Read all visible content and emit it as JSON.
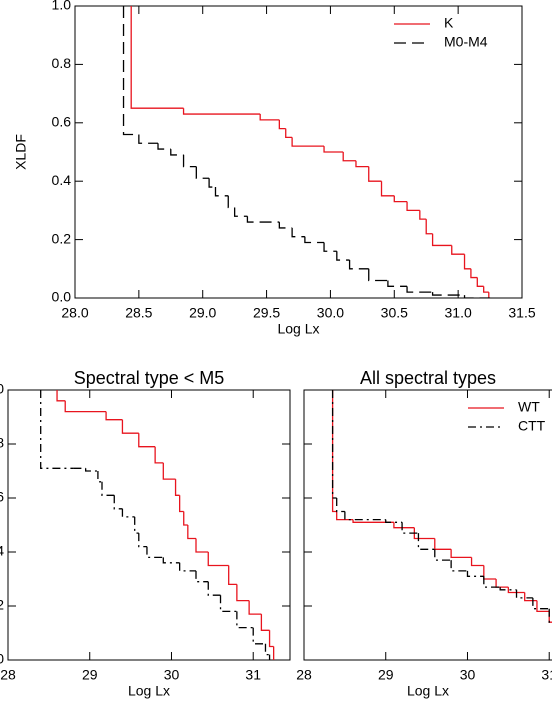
{
  "chart_data": [
    {
      "type": "line",
      "drawstyle": "steps-post",
      "ylabel": "XLDF",
      "xlabel": "Log Lx",
      "xlim": [
        28.0,
        31.5
      ],
      "ylim": [
        0.0,
        1.0
      ],
      "xticks": [
        {
          "value": 28.0,
          "label": "28.0"
        },
        {
          "value": 28.5,
          "label": "28.5"
        },
        {
          "value": 29.0,
          "label": "29.0"
        },
        {
          "value": 29.5,
          "label": "29.5"
        },
        {
          "value": 30.0,
          "label": "30.0"
        },
        {
          "value": 30.5,
          "label": "30.5"
        },
        {
          "value": 31.0,
          "label": "31.0"
        },
        {
          "value": 31.5,
          "label": "31.5"
        }
      ],
      "yticks": [
        {
          "value": 0.0,
          "label": "0.0"
        },
        {
          "value": 0.2,
          "label": "0.2"
        },
        {
          "value": 0.4,
          "label": "0.4"
        },
        {
          "value": 0.6,
          "label": "0.6"
        },
        {
          "value": 0.8,
          "label": "0.8"
        },
        {
          "value": 1.0,
          "label": "1.0"
        }
      ],
      "ytick_labels": true,
      "legend": "upper right",
      "series": [
        {
          "name": "K",
          "color": "#e8141e",
          "dash": "solid",
          "x": [
            28.44,
            28.44,
            28.85,
            29.45,
            29.6,
            29.65,
            29.7,
            29.95,
            30.1,
            30.2,
            30.3,
            30.4,
            30.5,
            30.6,
            30.7,
            30.75,
            30.8,
            30.95,
            31.05,
            31.1,
            31.15,
            31.2,
            31.24
          ],
          "values": [
            1.0,
            0.65,
            0.63,
            0.61,
            0.58,
            0.55,
            0.52,
            0.5,
            0.47,
            0.45,
            0.4,
            0.35,
            0.33,
            0.3,
            0.27,
            0.22,
            0.18,
            0.15,
            0.1,
            0.07,
            0.04,
            0.02,
            0.0
          ]
        },
        {
          "name": "M0-M4",
          "color": "#000000",
          "dash": "dashed",
          "x": [
            28.38,
            28.38,
            28.5,
            28.65,
            28.75,
            28.85,
            28.95,
            29.05,
            29.1,
            29.2,
            29.25,
            29.35,
            29.6,
            29.7,
            29.8,
            29.95,
            30.05,
            30.15,
            30.3,
            30.45,
            30.6,
            30.8,
            31.05,
            31.25
          ],
          "values": [
            1.0,
            0.56,
            0.53,
            0.51,
            0.49,
            0.45,
            0.41,
            0.38,
            0.35,
            0.31,
            0.28,
            0.26,
            0.24,
            0.21,
            0.19,
            0.16,
            0.13,
            0.1,
            0.06,
            0.04,
            0.02,
            0.01,
            0.0,
            0.0
          ]
        }
      ]
    },
    {
      "type": "line",
      "drawstyle": "steps-post",
      "title": "Spectral type < M5",
      "xlabel": "Log Lx",
      "xlim": [
        28,
        31.45
      ],
      "ylim": [
        0.0,
        1.0
      ],
      "xticks": [
        28,
        29,
        30,
        31
      ],
      "yticks": [
        {
          "value": 0.0,
          "label": "0.0"
        },
        {
          "value": 0.2,
          "label": "0.2"
        },
        {
          "value": 0.4,
          "label": "0.4"
        },
        {
          "value": 0.6,
          "label": "0.6"
        },
        {
          "value": 0.8,
          "label": "0.8"
        },
        {
          "value": 1.0,
          "label": "1.0"
        }
      ],
      "ytick_labels": true,
      "series": [
        {
          "color": "#e8141e",
          "dash": "solid",
          "x": [
            28.6,
            28.6,
            28.7,
            29.2,
            29.4,
            29.6,
            29.8,
            29.9,
            30.05,
            30.1,
            30.15,
            30.2,
            30.3,
            30.45,
            30.7,
            30.8,
            30.95,
            31.1,
            31.2,
            31.25
          ],
          "values": [
            1.0,
            0.96,
            0.92,
            0.89,
            0.84,
            0.79,
            0.73,
            0.67,
            0.61,
            0.55,
            0.5,
            0.45,
            0.4,
            0.35,
            0.28,
            0.22,
            0.17,
            0.11,
            0.05,
            0.0
          ]
        },
        {
          "color": "#000000",
          "dash": "dashdot",
          "x": [
            28.4,
            28.4,
            28.8,
            28.95,
            29.1,
            29.15,
            29.3,
            29.4,
            29.55,
            29.6,
            29.7,
            29.9,
            30.1,
            30.3,
            30.45,
            30.6,
            30.8,
            31.0,
            31.15,
            31.2
          ],
          "values": [
            1.0,
            0.71,
            0.71,
            0.7,
            0.66,
            0.61,
            0.56,
            0.53,
            0.47,
            0.42,
            0.38,
            0.36,
            0.33,
            0.29,
            0.24,
            0.18,
            0.12,
            0.06,
            0.02,
            0.0
          ]
        }
      ]
    },
    {
      "type": "line",
      "drawstyle": "steps-post",
      "title": "All spectral types",
      "xlabel": "Log Lx",
      "xlim": [
        28,
        31.45
      ],
      "ylim": [
        0.0,
        1.0
      ],
      "xticks": [
        28,
        29,
        30,
        31
      ],
      "yticks": [
        0.0,
        0.2,
        0.4,
        0.6,
        0.8,
        1.0
      ],
      "ytick_labels": false,
      "legend": "upper right",
      "series": [
        {
          "name": "WT",
          "color": "#e8141e",
          "dash": "solid",
          "x": [
            28.35,
            28.35,
            28.4,
            28.6,
            29.1,
            29.35,
            29.6,
            29.8,
            30.05,
            30.2,
            30.35,
            30.5,
            30.7,
            30.85,
            31.0,
            31.15,
            31.25
          ],
          "values": [
            1.0,
            0.55,
            0.52,
            0.51,
            0.49,
            0.45,
            0.41,
            0.38,
            0.35,
            0.3,
            0.27,
            0.25,
            0.22,
            0.18,
            0.14,
            0.1,
            0.08
          ]
        },
        {
          "name": "CTT",
          "color": "#000000",
          "dash": "dashdot",
          "x": [
            28.35,
            28.35,
            28.4,
            28.5,
            29.0,
            29.2,
            29.4,
            29.6,
            29.8,
            30.0,
            30.2,
            30.4,
            30.6,
            30.8,
            31.0,
            31.2,
            31.3
          ],
          "values": [
            1.0,
            0.6,
            0.55,
            0.52,
            0.51,
            0.47,
            0.41,
            0.37,
            0.33,
            0.31,
            0.27,
            0.26,
            0.23,
            0.19,
            0.14,
            0.1,
            0.08
          ]
        }
      ]
    }
  ]
}
